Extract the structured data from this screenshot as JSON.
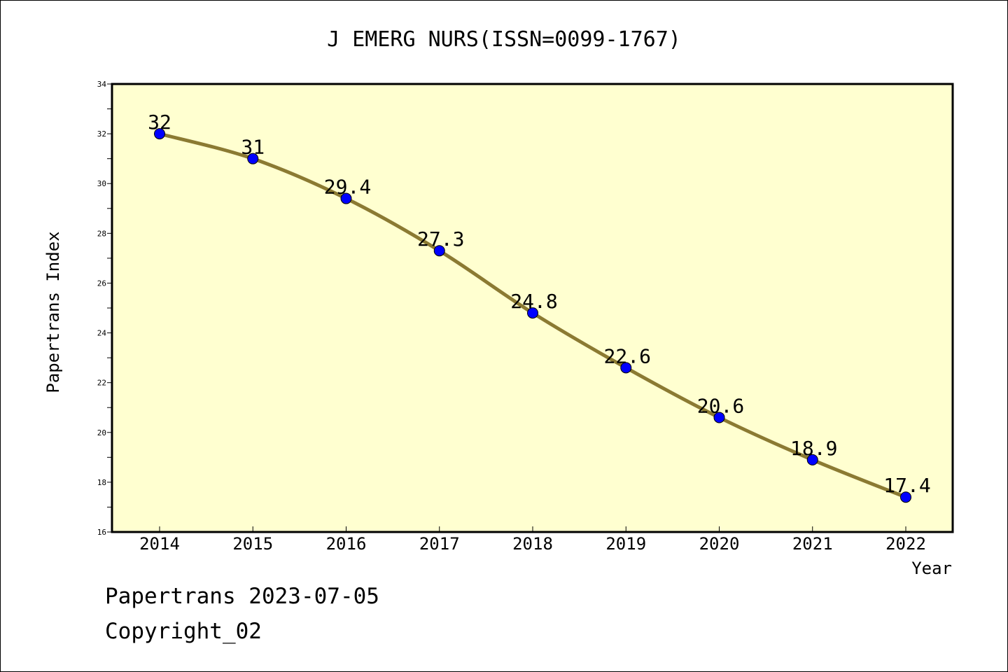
{
  "chart_data": {
    "type": "line",
    "title": "J EMERG NURS(ISSN=0099-1767)",
    "xlabel": "Year",
    "ylabel": "Papertrans Index",
    "x": [
      "2014",
      "2015",
      "2016",
      "2017",
      "2018",
      "2019",
      "2020",
      "2021",
      "2022"
    ],
    "values": [
      32,
      31,
      29.4,
      27.3,
      24.8,
      22.6,
      20.6,
      18.9,
      17.4
    ],
    "data_labels": [
      "32",
      "31",
      "29.4",
      "27.3",
      "24.8",
      "22.6",
      "20.6",
      "18.9",
      "17.4"
    ],
    "ylim": [
      16,
      34
    ],
    "yticks": [
      "16",
      "18",
      "20",
      "22",
      "24",
      "26",
      "28",
      "30",
      "32",
      "34"
    ],
    "grid": false,
    "colors": {
      "plot_background": "#ffffd0",
      "line": "#8b7a32",
      "marker": "#0000ff"
    }
  },
  "footer": {
    "line1": "Papertrans 2023-07-05",
    "line2": "Copyright_02"
  }
}
